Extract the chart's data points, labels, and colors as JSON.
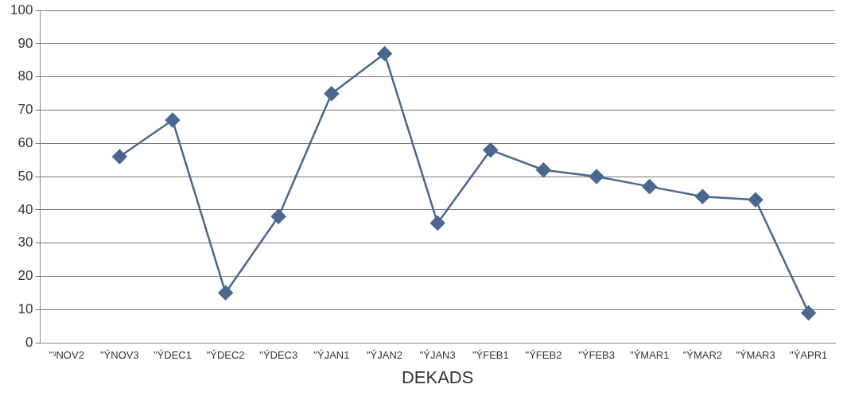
{
  "chart_data": {
    "type": "line",
    "xlabel": "DEKADS",
    "categories": [
      "\"³NOV2",
      "\"ÝNOV3",
      "\"ÝDEC1",
      "\"ÝDEC2",
      "\"ÝDEC3",
      "\"ÝJAN1",
      "\"ÝJAN2",
      "\"ÝJAN3",
      "\"ÝFEB1",
      "\"ÝFEB2",
      "\"ÝFEB3",
      "\"ÝMAR1",
      "\"ÝMAR2",
      "\"ÝMAR3",
      "\"ÝAPR1"
    ],
    "values": [
      null,
      56,
      67,
      15,
      38,
      75,
      87,
      36,
      58,
      52,
      50,
      47,
      44,
      43,
      9
    ],
    "color": "#4a6890",
    "ylim": [
      0,
      100
    ],
    "yticks": [
      0,
      10,
      20,
      30,
      40,
      50,
      60,
      70,
      80,
      90,
      100
    ],
    "grid": "y",
    "legend": false,
    "marker": "diamond",
    "line_style": "solid"
  }
}
